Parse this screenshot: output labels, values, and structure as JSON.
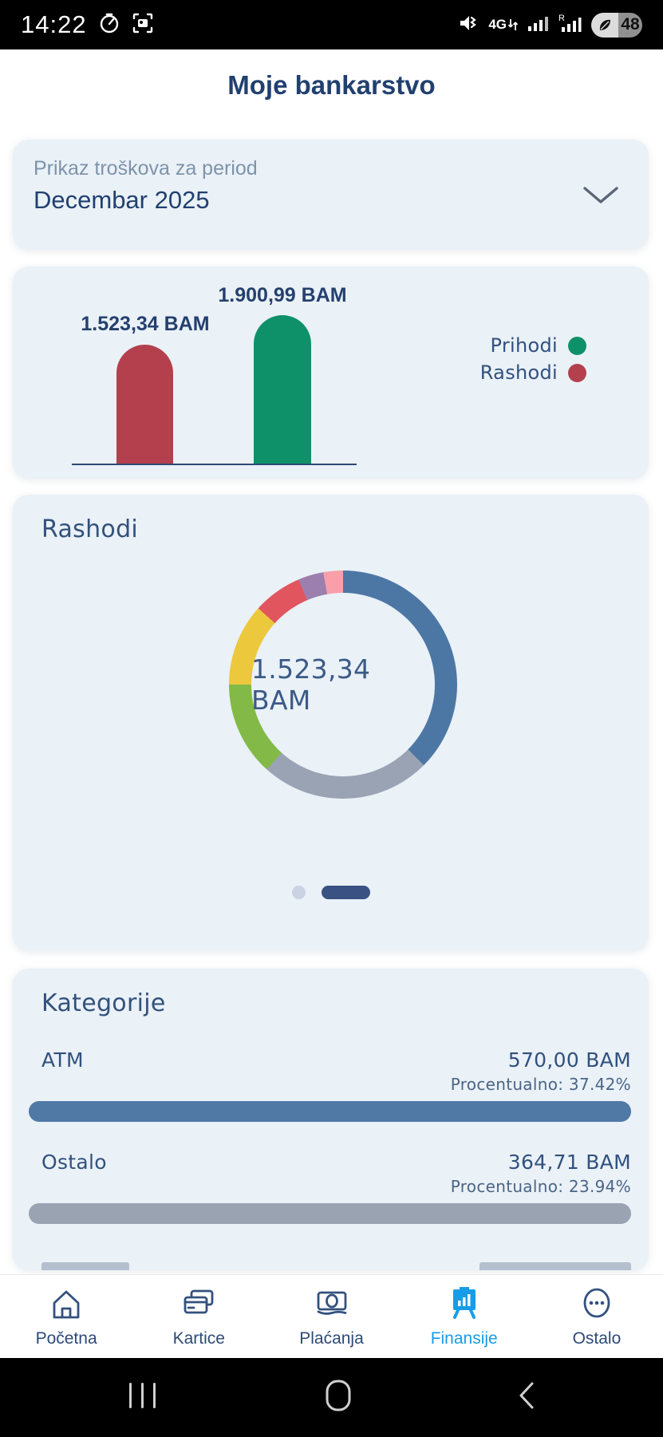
{
  "status_bar": {
    "time": "14:22",
    "left_icons": [
      "timer-icon",
      "screen-capture-icon"
    ],
    "right_icons": [
      "volume-muted-icon",
      "network-4g-icon",
      "signal-icon",
      "signal-r-icon",
      "battery-icon"
    ],
    "network_label": "4G",
    "sim2_label": "R",
    "battery_percent": "48"
  },
  "header": {
    "title": "Moje bankarstvo"
  },
  "period_selector": {
    "label": "Prikaz troškova za period",
    "value": "Decembar 2025",
    "icon": "chevron-down-icon"
  },
  "bar_chart": {
    "type": "bar",
    "series": [
      {
        "name": "Rashodi",
        "value": 1523.34,
        "label": "1.523,34 BAM",
        "color": "#b4404d"
      },
      {
        "name": "Prihodi",
        "value": 1900.99,
        "label": "1.900,99 BAM",
        "color": "#0e9168"
      }
    ],
    "legend": [
      {
        "label": "Prihodi",
        "color": "#0e9168"
      },
      {
        "label": "Rashodi",
        "color": "#b4404d"
      }
    ],
    "legend_position": "right"
  },
  "donut_chart": {
    "type": "donut",
    "title": "Rashodi",
    "center_label": "1.523,34 BAM",
    "total_bam": 1523.34,
    "segments": [
      {
        "name": "ATM",
        "percent": 37.42,
        "color": "#4c77a5",
        "start_deg": 0,
        "end_deg": 135
      },
      {
        "name": "Ostalo",
        "percent": 23.94,
        "color": "#9aa3b4",
        "start_deg": 135,
        "end_deg": 222
      },
      {
        "name": "segment-3",
        "percent": 13.3,
        "color": "#83ba47",
        "start_deg": 222,
        "end_deg": 270
      },
      {
        "name": "segment-4",
        "percent": 11.7,
        "color": "#ecc83d",
        "start_deg": 270,
        "end_deg": 312
      },
      {
        "name": "segment-5",
        "percent": 6.9,
        "color": "#e1555e",
        "start_deg": 312,
        "end_deg": 337
      },
      {
        "name": "segment-6",
        "percent": 3.6,
        "color": "#9c7fae",
        "start_deg": 337,
        "end_deg": 350
      },
      {
        "name": "segment-7",
        "percent": 2.8,
        "color": "#f99fa9",
        "start_deg": 350,
        "end_deg": 360
      }
    ],
    "page_indicator": {
      "pages": 2,
      "active_page": 2
    }
  },
  "categories": {
    "title": "Kategorije",
    "rows": [
      {
        "label": "ATM",
        "amount": "570,00 BAM",
        "percent_text": "Procentualno: 37.42%",
        "percent": 37.42,
        "track_color": "#5179a6",
        "fill_color": "#42618a"
      },
      {
        "label": "Ostalo",
        "amount": "364,71 BAM",
        "percent_text": "Procentualno: 23.94%",
        "percent": 23.94,
        "track_color": "#9aa3b2",
        "fill_color": "#6e757d"
      }
    ],
    "clipped_row_visible": true
  },
  "bottom_nav": {
    "items": [
      {
        "label": "Početna",
        "icon": "home-icon",
        "active": false
      },
      {
        "label": "Kartice",
        "icon": "cards-icon",
        "active": false
      },
      {
        "label": "Plaćanja",
        "icon": "banknote-icon",
        "active": false
      },
      {
        "label": "Finansije",
        "icon": "chart-board-icon",
        "active": true
      },
      {
        "label": "Ostalo",
        "icon": "more-dots-icon",
        "active": false
      }
    ],
    "active_color": "#189ce8",
    "inactive_color": "#33517e"
  },
  "android_nav": {
    "items": [
      "recents-icon",
      "home-pill-icon",
      "back-icon"
    ]
  },
  "colors": {
    "card_background": "#eaf1f7",
    "title_navy": "#21406f",
    "accent_blue": "#189ce8",
    "indicator_pill": "#3a5183",
    "indicator_dot": "#c9d3e3"
  }
}
